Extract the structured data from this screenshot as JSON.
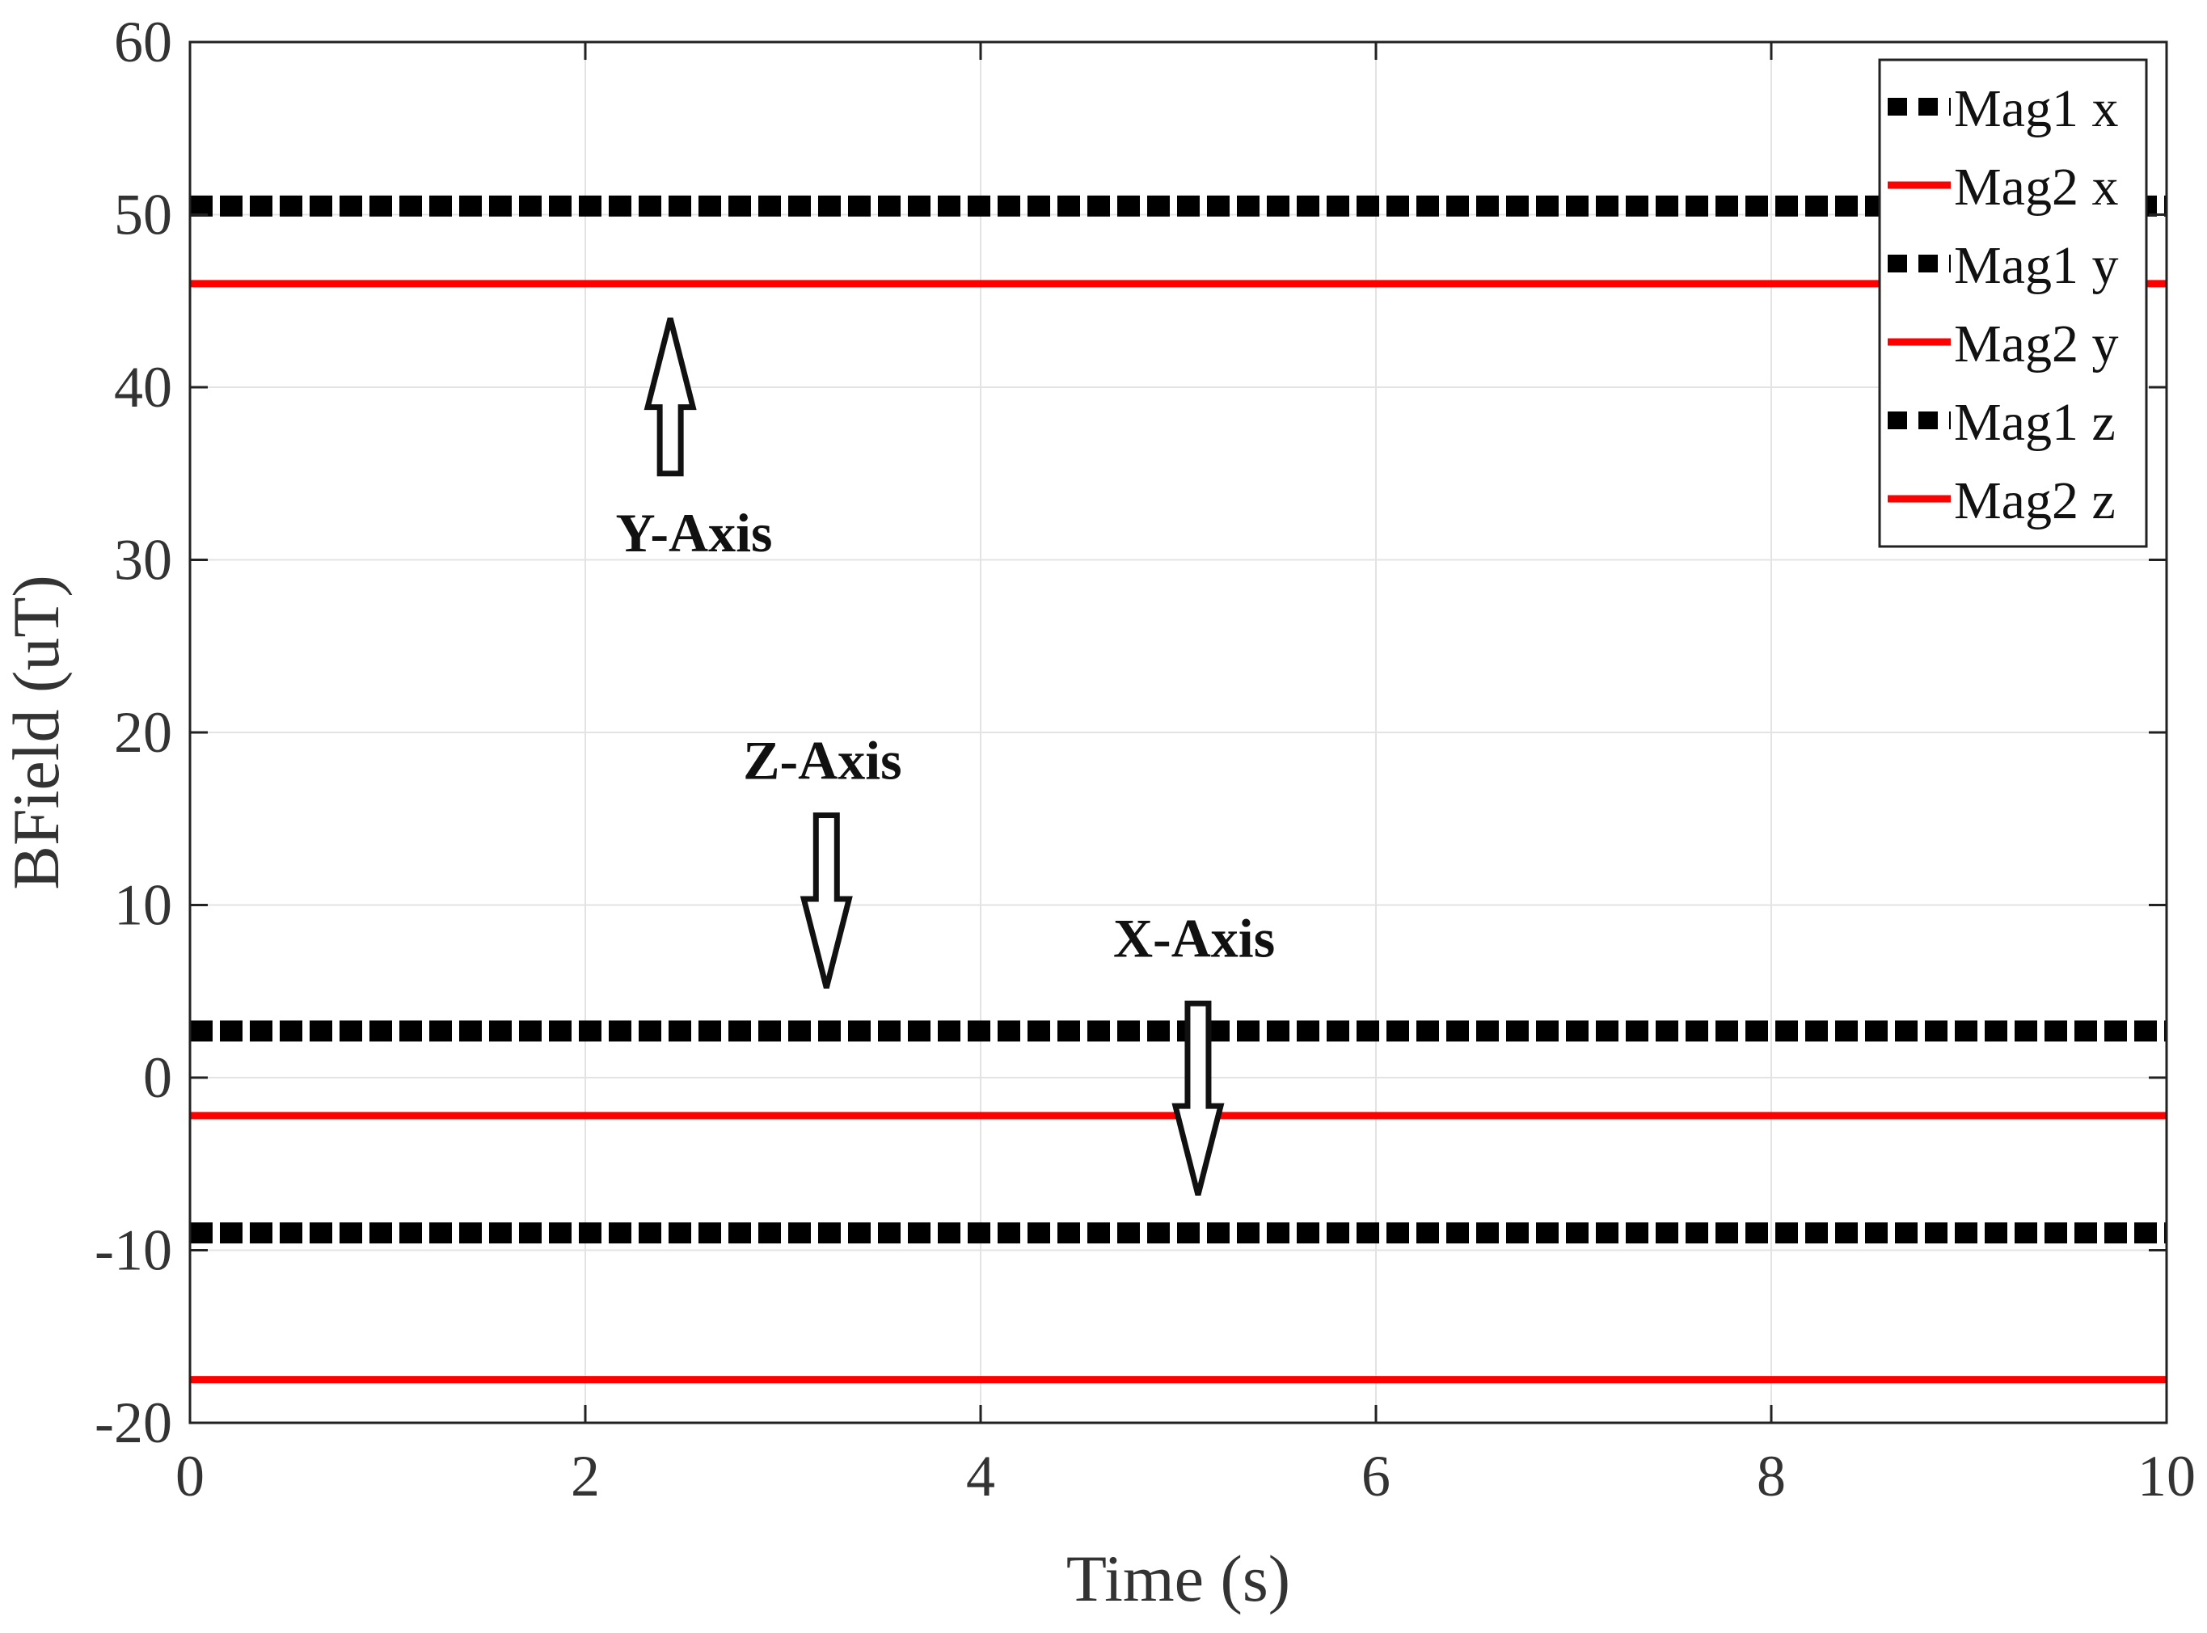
{
  "chart_data": {
    "type": "line",
    "title": "",
    "xlabel": "Time (s)",
    "ylabel": "BField (uT)",
    "xlim": [
      0,
      10
    ],
    "ylim": [
      -20,
      60
    ],
    "xticks": [
      0,
      2,
      4,
      6,
      8,
      10
    ],
    "yticks": [
      -20,
      -10,
      0,
      10,
      20,
      30,
      40,
      50,
      60
    ],
    "xtick_labels": [
      "0",
      "2",
      "4",
      "6",
      "8",
      "10"
    ],
    "ytick_labels": [
      "-20",
      "-10",
      "0",
      "10",
      "20",
      "30",
      "40",
      "50",
      "60"
    ],
    "grid": true,
    "legend_position": "top-right",
    "series": [
      {
        "name": "Mag1 x",
        "style": "dotted",
        "color": "#000000",
        "x": [
          0,
          10
        ],
        "y": [
          -9.0,
          -9.0
        ]
      },
      {
        "name": "Mag2 x",
        "style": "solid",
        "color": "#ff0000",
        "x": [
          0,
          10
        ],
        "y": [
          -17.5,
          -17.5
        ]
      },
      {
        "name": "Mag1 y",
        "style": "dotted",
        "color": "#000000",
        "x": [
          0,
          10
        ],
        "y": [
          50.5,
          50.5
        ]
      },
      {
        "name": "Mag2 y",
        "style": "solid",
        "color": "#ff0000",
        "x": [
          0,
          10
        ],
        "y": [
          46.0,
          46.0
        ]
      },
      {
        "name": "Mag1 z",
        "style": "dotted",
        "color": "#000000",
        "x": [
          0,
          10
        ],
        "y": [
          2.7,
          2.7
        ]
      },
      {
        "name": "Mag2 z",
        "style": "solid",
        "color": "#ff0000",
        "x": [
          0,
          10
        ],
        "y": [
          -2.2,
          -2.2
        ]
      }
    ],
    "annotations": [
      {
        "text": "Y-Axis",
        "arrow_direction": "up",
        "text_x": 2.55,
        "text_y": 30.5,
        "arrow_from": [
          2.43,
          35
        ],
        "arrow_to": [
          2.43,
          44
        ]
      },
      {
        "text": "Z-Axis",
        "arrow_direction": "down",
        "text_x": 3.2,
        "text_y": 17.3,
        "arrow_from": [
          3.22,
          15.2
        ],
        "arrow_to": [
          3.22,
          5.2
        ]
      },
      {
        "text": "X-Axis",
        "arrow_direction": "down",
        "text_x": 5.08,
        "text_y": 7.0,
        "arrow_from": [
          5.1,
          4.3
        ],
        "arrow_to": [
          5.1,
          -6.8
        ]
      }
    ]
  }
}
